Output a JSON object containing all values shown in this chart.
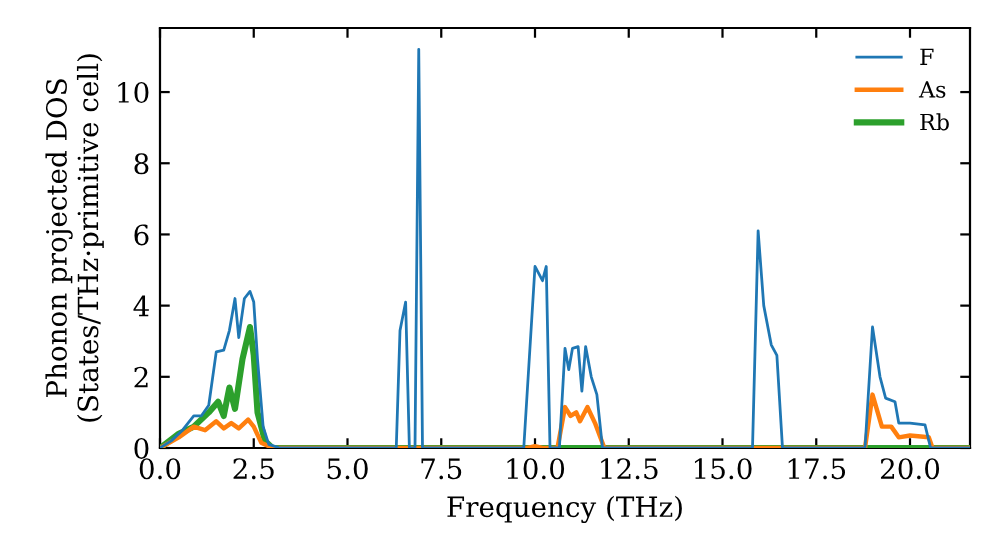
{
  "chart_data": {
    "type": "line",
    "xlabel": "Frequency (THz)",
    "ylabel": "Phonon projected DOS\n(States/THz·primitive cell)",
    "xlim": [
      0,
      21.6
    ],
    "ylim": [
      0,
      11.8
    ],
    "xticks": [
      {
        "value": 0,
        "label": "0.0"
      },
      {
        "value": 2.5,
        "label": "2.5"
      },
      {
        "value": 5,
        "label": "5.0"
      },
      {
        "value": 7.5,
        "label": "7.5"
      },
      {
        "value": 10,
        "label": "10.0"
      },
      {
        "value": 12.5,
        "label": "12.5"
      },
      {
        "value": 15,
        "label": "15.0"
      },
      {
        "value": 17.5,
        "label": "17.5"
      },
      {
        "value": 20,
        "label": "20.0"
      }
    ],
    "yticks": [
      0,
      2,
      4,
      6,
      8,
      10
    ],
    "legend": "top right",
    "grid": false,
    "series": [
      {
        "name": "F",
        "color": "#1f77b4",
        "x": [
          0,
          0.3,
          0.6,
          0.9,
          1.1,
          1.3,
          1.5,
          1.7,
          1.85,
          2.0,
          2.1,
          2.25,
          2.4,
          2.5,
          2.6,
          2.75,
          2.9,
          3.2,
          6.3,
          6.4,
          6.55,
          6.65,
          6.8,
          6.9,
          7.0,
          7.2,
          9.7,
          10.0,
          10.2,
          10.3,
          10.4,
          10.65,
          10.8,
          10.9,
          11.0,
          11.15,
          11.25,
          11.35,
          11.5,
          11.65,
          11.8,
          15.8,
          15.95,
          16.1,
          16.3,
          16.45,
          16.6,
          18.8,
          19.0,
          19.2,
          19.35,
          19.6,
          19.7,
          20.0,
          20.4,
          20.55,
          21.6
        ],
        "values": [
          0,
          0.2,
          0.5,
          0.9,
          0.9,
          1.2,
          2.7,
          2.75,
          3.3,
          4.2,
          3.1,
          4.2,
          4.4,
          4.1,
          2.5,
          0.6,
          0.1,
          0,
          0,
          3.3,
          4.1,
          0,
          0,
          11.2,
          0,
          0,
          0,
          5.1,
          4.7,
          5.1,
          0,
          0,
          2.8,
          2.2,
          2.8,
          2.85,
          1.6,
          2.85,
          2.0,
          1.5,
          0,
          0,
          6.1,
          4.0,
          2.9,
          2.6,
          0,
          0,
          3.4,
          2.0,
          1.4,
          1.3,
          0.7,
          0.7,
          0.65,
          0,
          0
        ]
      },
      {
        "name": "As",
        "color": "#ff7f0e",
        "x": [
          0,
          0.5,
          0.9,
          1.2,
          1.5,
          1.7,
          1.9,
          2.1,
          2.35,
          2.5,
          2.7,
          3.0,
          9.8,
          10.0,
          10.2,
          10.6,
          10.8,
          10.95,
          11.1,
          11.2,
          11.4,
          11.6,
          11.85,
          18.8,
          19.0,
          19.25,
          19.5,
          19.7,
          20.0,
          20.5,
          20.6,
          21.6
        ],
        "values": [
          0,
          0.3,
          0.6,
          0.5,
          0.75,
          0.55,
          0.7,
          0.55,
          0.8,
          0.6,
          0.15,
          0,
          0,
          0.05,
          0,
          0,
          1.15,
          0.9,
          1.0,
          0.75,
          1.15,
          0.7,
          0,
          0,
          1.5,
          0.6,
          0.6,
          0.3,
          0.35,
          0.3,
          0,
          0
        ]
      },
      {
        "name": "Rb",
        "color": "#2ca02c",
        "x": [
          0,
          0.5,
          0.9,
          1.3,
          1.55,
          1.7,
          1.85,
          2.0,
          2.2,
          2.4,
          2.5,
          2.6,
          2.8,
          3.0,
          21.6
        ],
        "values": [
          0,
          0.4,
          0.6,
          1.0,
          1.3,
          0.9,
          1.7,
          1.1,
          2.5,
          3.4,
          2.6,
          1.0,
          0.2,
          0,
          0
        ]
      }
    ]
  }
}
